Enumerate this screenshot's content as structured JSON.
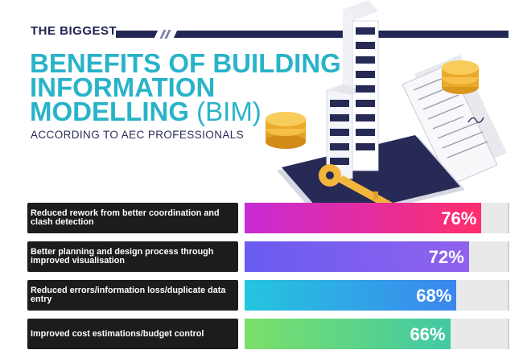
{
  "header": {
    "kicker": "THE BIGGEST",
    "title_lines": [
      "BENEFITS OF BUILDING",
      "INFORMATION"
    ],
    "title_line3_bold": "MODELLING",
    "title_line3_light": " (BIM)",
    "subtitle": "ACCORDING TO AEC PROFESSIONALS"
  },
  "colors": {
    "title": "#29b3c9",
    "dark": "#1f2350",
    "bars": [
      "#c72bd5",
      "#6a5cf0",
      "#24c6de",
      "#7be06a"
    ],
    "bars_end": [
      "#ff2e6d",
      "#8f62ee",
      "#3c86ee",
      "#41c9a4"
    ]
  },
  "chart_data": {
    "type": "bar",
    "orientation": "horizontal",
    "categories": [
      "Reduced rework from better coordination and clash detection",
      "Better planning and design process through improved visualisation",
      "Reduced errors/information loss/duplicate data entry",
      "Improved cost estimations/budget control"
    ],
    "values": [
      76,
      72,
      68,
      66
    ],
    "value_labels": [
      "76%",
      "72%",
      "68%",
      "66%"
    ],
    "xlim": [
      0,
      100
    ]
  }
}
